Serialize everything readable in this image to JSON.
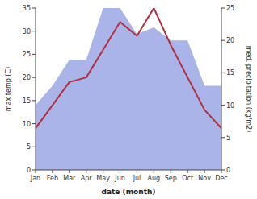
{
  "chart_data": {
    "type": "line",
    "categories": [
      "Jan",
      "Feb",
      "Mar",
      "Apr",
      "May",
      "Jun",
      "Jul",
      "Aug",
      "Sep",
      "Oct",
      "Nov",
      "Dec"
    ],
    "xlabel": "date (month)",
    "ylabel": "max temp (C)",
    "y2label": "med. precipitation (kg/m2)",
    "series": [
      {
        "type": "area",
        "axis": "y2",
        "color": "#aab4e8",
        "values": [
          10,
          13,
          17,
          17,
          25,
          25,
          21,
          22,
          20,
          20,
          13,
          13
        ]
      },
      {
        "type": "line",
        "color": "#b03040",
        "values": [
          9,
          14,
          19,
          20,
          26,
          32,
          29,
          35,
          27,
          20,
          13,
          9
        ]
      }
    ],
    "ylim": [
      0,
      35
    ],
    "yticks": [
      0,
      5,
      10,
      15,
      20,
      25,
      30,
      35
    ],
    "y2lim": [
      0,
      25
    ],
    "y2ticks": [
      0,
      5,
      10,
      15,
      20,
      25
    ]
  }
}
